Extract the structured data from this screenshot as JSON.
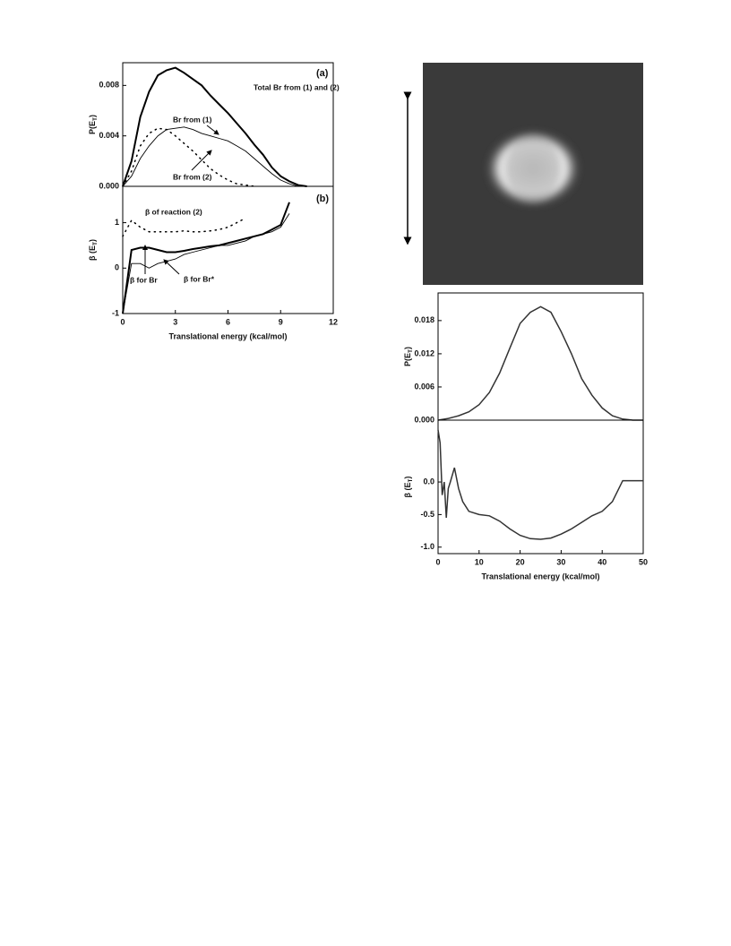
{
  "chart_data": [
    {
      "type": "line",
      "panel_label": "(a)",
      "ylabel": [
        "P(E",
        "T",
        ")"
      ],
      "x": [
        0,
        0.5,
        1,
        1.5,
        2,
        2.5,
        3,
        3.5,
        4,
        4.5,
        5,
        5.5,
        6,
        6.5,
        7,
        7.5,
        8,
        8.5,
        9,
        9.5,
        10,
        10.5
      ],
      "series": [
        {
          "name": "Total Br from (1) and (2)",
          "color": "#000",
          "linewidth": 2,
          "linestyle": "solid",
          "values": [
            0,
            0.002,
            0.0055,
            0.0075,
            0.0088,
            0.0092,
            0.0094,
            0.009,
            0.0085,
            0.008,
            0.0072,
            0.0065,
            0.0058,
            0.005,
            0.0042,
            0.0033,
            0.0025,
            0.0015,
            0.0008,
            0.0004,
            0.0001,
            0
          ]
        },
        {
          "name": "Br from (1)",
          "color": "#000",
          "linewidth": 0.9,
          "linestyle": "solid",
          "values": [
            0,
            0.0008,
            0.0022,
            0.0032,
            0.004,
            0.0045,
            0.0046,
            0.0047,
            0.0045,
            0.0042,
            0.004,
            0.0038,
            0.0036,
            0.0032,
            0.0028,
            0.0022,
            0.0016,
            0.001,
            0.0005,
            0.0002,
            0,
            null
          ]
        },
        {
          "name": "Br from (2)",
          "color": "#000",
          "linewidth": 1.5,
          "linestyle": "dotted",
          "values": [
            0,
            0.0012,
            0.0032,
            0.0042,
            0.0046,
            0.0045,
            0.004,
            0.0034,
            0.0028,
            0.0021,
            0.0014,
            0.0009,
            0.0005,
            0.0002,
            0.0001,
            0,
            null,
            null,
            null,
            null,
            null,
            null
          ]
        }
      ],
      "xlim": [
        0,
        12
      ],
      "ylim": [
        0,
        0.0098
      ],
      "yticks": [
        {
          "value": 0,
          "label": "0.000"
        },
        {
          "value": 0.004,
          "label": "0.004"
        },
        {
          "value": 0.008,
          "label": "0.008"
        }
      ]
    },
    {
      "type": "line",
      "panel_label": "(b)",
      "ylabel": [
        "β (E",
        "T",
        ")"
      ],
      "xlabel": "Translational energy (kcal/mol)",
      "x": [
        0,
        0.5,
        1,
        1.5,
        2,
        2.5,
        3,
        3.5,
        4,
        4.5,
        5,
        5.5,
        6,
        6.5,
        7,
        7.5,
        8,
        8.5,
        9,
        9.5
      ],
      "series": [
        {
          "name": "β for Br",
          "color": "#000",
          "linewidth": 2,
          "linestyle": "solid",
          "values": [
            -1,
            0.4,
            0.45,
            0.45,
            0.4,
            0.35,
            0.35,
            0.38,
            0.42,
            0.45,
            0.48,
            0.5,
            0.55,
            0.6,
            0.65,
            0.7,
            0.75,
            0.85,
            0.95,
            1.45
          ]
        },
        {
          "name": "β for Br*",
          "color": "#000",
          "linewidth": 0.9,
          "linestyle": "solid",
          "values": [
            -1,
            0.1,
            0.1,
            0,
            0.1,
            0.15,
            0.2,
            0.3,
            0.35,
            0.4,
            0.45,
            0.5,
            0.5,
            0.55,
            0.6,
            0.7,
            0.75,
            0.8,
            0.9,
            1.2
          ]
        },
        {
          "name": "β of reaction (2)",
          "color": "#000",
          "linewidth": 1.5,
          "linestyle": "dotted",
          "values": [
            0.7,
            1.05,
            0.9,
            0.8,
            0.8,
            0.8,
            0.8,
            0.82,
            0.8,
            0.8,
            0.82,
            0.85,
            0.9,
            1,
            1.1,
            null,
            null,
            null,
            null,
            null
          ]
        }
      ],
      "xlim": [
        0,
        12
      ],
      "xticks": [
        0,
        3,
        6,
        9,
        12
      ],
      "ylim": [
        -1,
        1.8
      ],
      "yticks": [
        -1,
        0,
        1
      ]
    },
    {
      "type": "line",
      "ylabel": [
        "P(E",
        "T",
        ")"
      ],
      "x": [
        0,
        2.5,
        5,
        7.5,
        10,
        12.5,
        15,
        17.5,
        20,
        22.5,
        25,
        27.5,
        30,
        32.5,
        35,
        37.5,
        40,
        42.5,
        45,
        47.5,
        50
      ],
      "series": [
        {
          "color": "#333",
          "linewidth": 1.5,
          "linestyle": "solid",
          "values": [
            0,
            0.0003,
            0.0008,
            0.0015,
            0.0028,
            0.005,
            0.0085,
            0.013,
            0.0175,
            0.0195,
            0.0205,
            0.0195,
            0.016,
            0.012,
            0.0075,
            0.0045,
            0.0022,
            0.0008,
            0.0002,
            0,
            0
          ]
        }
      ],
      "xlim": [
        0,
        50
      ],
      "ylim": [
        0,
        0.023
      ],
      "yticks": [
        {
          "value": 0,
          "label": "0.000"
        },
        {
          "value": 0.006,
          "label": "0.006"
        },
        {
          "value": 0.012,
          "label": "0.012"
        },
        {
          "value": 0.018,
          "label": "0.018"
        }
      ]
    },
    {
      "type": "line",
      "ylabel": [
        "β (E",
        "T",
        ")"
      ],
      "xlabel": "Translational energy (kcal/mol)",
      "x": [
        0,
        0.5,
        1,
        1.5,
        2,
        2.5,
        3,
        4,
        5,
        6,
        7.5,
        10,
        12.5,
        15,
        17.5,
        20,
        22.5,
        25,
        27.5,
        30,
        32.5,
        35,
        37.5,
        40,
        42.5,
        45,
        50
      ],
      "series": [
        {
          "color": "#333",
          "linewidth": 1.5,
          "linestyle": "solid",
          "values": [
            0.8,
            0.6,
            -0.2,
            0,
            -0.55,
            -0.1,
            0,
            0.22,
            -0.1,
            -0.3,
            -0.45,
            -0.5,
            -0.52,
            -0.6,
            -0.72,
            -0.82,
            -0.87,
            -0.88,
            -0.86,
            -0.8,
            -0.72,
            -0.62,
            -0.52,
            -0.45,
            -0.3,
            0.02,
            0.02
          ]
        }
      ],
      "xlim": [
        0,
        50
      ],
      "xticks": [
        0,
        10,
        20,
        30,
        40,
        50
      ],
      "ylim": [
        -1.1,
        0.95
      ],
      "yticks": [
        {
          "value": -1,
          "label": "-1.0"
        },
        {
          "value": -0.5,
          "label": "-0.5"
        },
        {
          "value": 0,
          "label": "0.0"
        }
      ]
    }
  ]
}
